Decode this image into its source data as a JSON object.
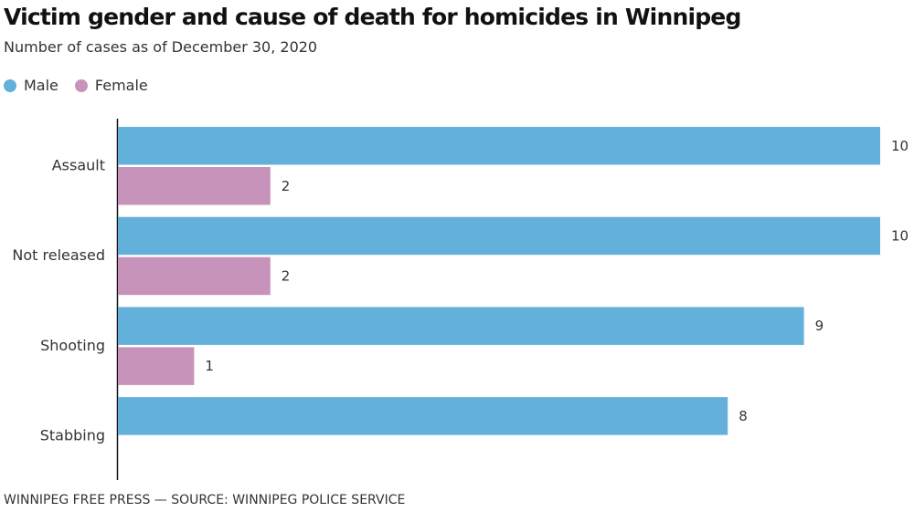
{
  "chart_data": {
    "type": "bar",
    "orientation": "horizontal",
    "title": "Victim gender and cause of death for homicides in Winnipeg",
    "subtitle": "Number of cases as of December 30, 2020",
    "categories": [
      "Assault",
      "Not released",
      "Shooting",
      "Stabbing"
    ],
    "series": [
      {
        "name": "Male",
        "color": "#63b0da",
        "values": [
          10,
          10,
          9,
          8
        ],
        "labels": [
          "10",
          "10",
          "9",
          "8"
        ]
      },
      {
        "name": "Female",
        "color": "#c893ba",
        "values": [
          2,
          2,
          1,
          0
        ],
        "labels": [
          "2",
          "2",
          "1",
          ""
        ]
      }
    ],
    "xlim": [
      0,
      10
    ],
    "xlabel": "",
    "ylabel": "",
    "grid": false,
    "legend_position": "top-left",
    "footer": "WINNIPEG FREE PRESS — SOURCE: WINNIPEG POLICE SERVICE"
  }
}
